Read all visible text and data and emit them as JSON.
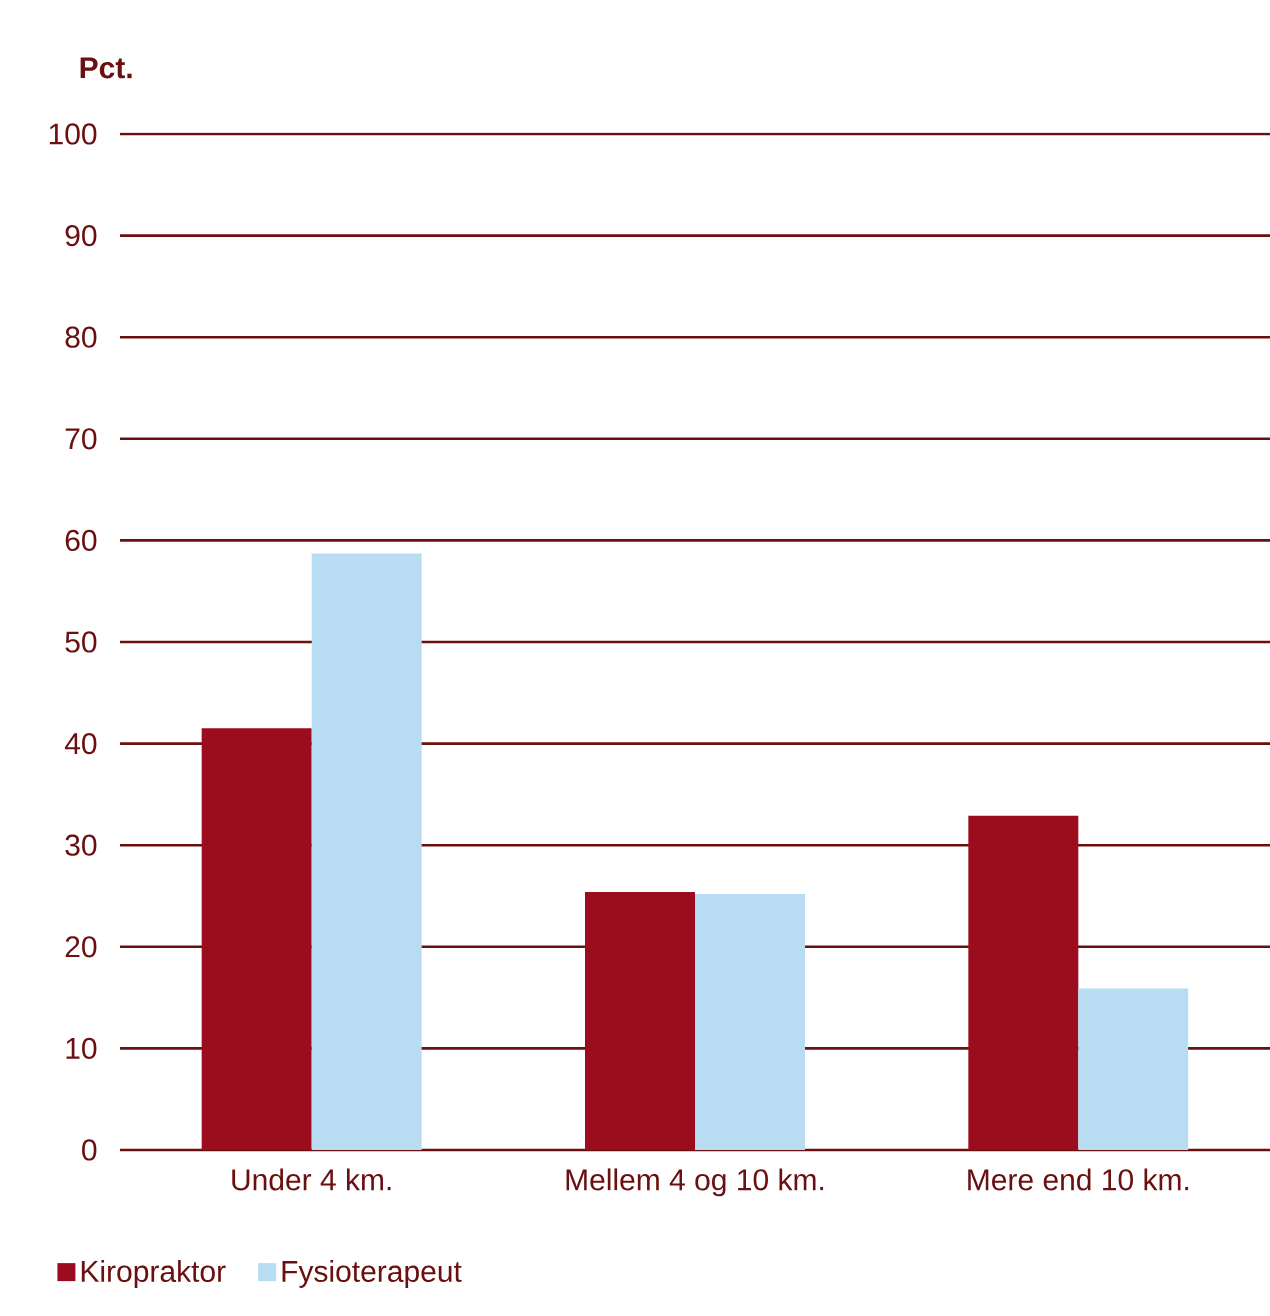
{
  "chart_data": {
    "type": "bar",
    "ylabel": "Pct.",
    "categories": [
      "Under 4 km.",
      "Mellem 4 og 10 km.",
      "Mere end 10 km."
    ],
    "series": [
      {
        "name": "Kiropraktor",
        "color": "#9b0c1e",
        "values": [
          41.5,
          25.4,
          32.9
        ]
      },
      {
        "name": "Fysioterapeut",
        "color": "#b8dcf2",
        "values": [
          58.7,
          25.2,
          15.9
        ]
      }
    ],
    "ylim": [
      0,
      100
    ],
    "yticks": [
      0,
      10,
      20,
      30,
      40,
      50,
      60,
      70,
      80,
      90,
      100
    ],
    "grid": "y",
    "legend": "bottom left"
  }
}
